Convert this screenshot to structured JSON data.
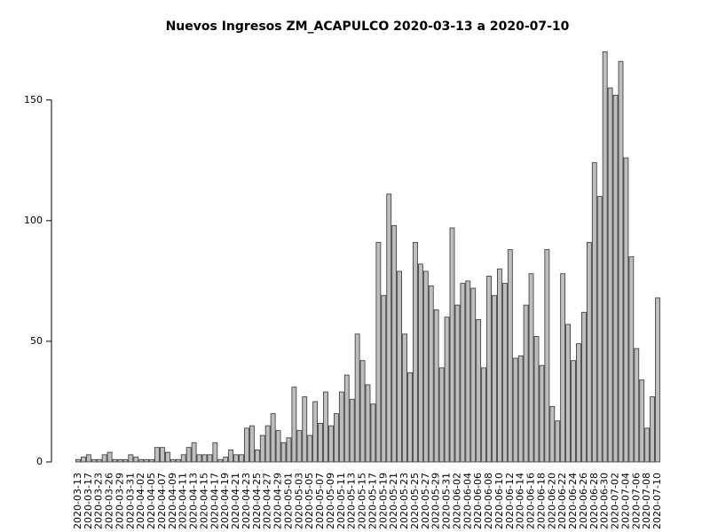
{
  "chart_data": {
    "type": "bar",
    "title": "Nuevos Ingresos ZM_ACAPULCO 2020-03-13 a 2020-07-10",
    "categories": [
      "2020-03-13",
      null,
      "2020-03-17",
      null,
      "2020-03-23",
      null,
      "2020-03-26",
      null,
      "2020-03-29",
      null,
      "2020-03-31",
      null,
      "2020-04-02",
      null,
      "2020-04-05",
      null,
      "2020-04-07",
      null,
      "2020-04-09",
      null,
      "2020-04-11",
      null,
      "2020-04-13",
      null,
      "2020-04-15",
      null,
      "2020-04-17",
      null,
      "2020-04-19",
      null,
      "2020-04-21",
      null,
      "2020-04-23",
      null,
      "2020-04-25",
      null,
      "2020-04-27",
      null,
      "2020-04-29",
      null,
      "2020-05-01",
      null,
      "2020-05-03",
      null,
      "2020-05-05",
      null,
      "2020-05-07",
      null,
      "2020-05-09",
      null,
      "2020-05-11",
      null,
      "2020-05-13",
      null,
      "2020-05-15",
      null,
      "2020-05-17",
      null,
      "2020-05-19",
      null,
      "2020-05-21",
      null,
      "2020-05-23",
      null,
      "2020-05-25",
      null,
      "2020-05-27",
      null,
      "2020-05-29",
      null,
      "2020-05-31",
      null,
      "2020-06-02",
      null,
      "2020-06-04",
      null,
      "2020-06-06",
      null,
      "2020-06-08",
      null,
      "2020-06-10",
      null,
      "2020-06-12",
      null,
      "2020-06-14",
      null,
      "2020-06-16",
      null,
      "2020-06-18",
      null,
      "2020-06-20",
      null,
      "2020-06-22",
      null,
      "2020-06-24",
      null,
      "2020-06-26",
      null,
      "2020-06-28",
      null,
      "2020-06-30",
      null,
      "2020-07-02",
      null,
      "2020-07-04",
      null,
      "2020-07-06",
      null,
      "2020-07-08",
      null,
      "2020-07-10"
    ],
    "values": [
      1,
      2,
      3,
      1,
      1,
      3,
      4,
      1,
      1,
      1,
      3,
      2,
      1,
      1,
      1,
      6,
      6,
      4,
      1,
      1,
      3,
      6,
      8,
      3,
      3,
      3,
      8,
      1,
      2,
      5,
      3,
      3,
      14,
      15,
      5,
      11,
      15,
      20,
      13,
      8,
      10,
      31,
      13,
      27,
      11,
      25,
      16,
      29,
      15,
      20,
      29,
      36,
      26,
      53,
      42,
      32,
      24,
      91,
      69,
      111,
      98,
      79,
      53,
      37,
      91,
      82,
      79,
      73,
      63,
      39,
      60,
      97,
      65,
      74,
      75,
      72,
      59,
      39,
      77,
      69,
      80,
      74,
      88,
      43,
      44,
      65,
      78,
      52,
      40,
      88,
      23,
      17,
      78,
      57,
      42,
      49,
      62,
      91,
      124,
      110,
      170,
      155,
      152,
      166,
      126,
      85,
      47,
      34,
      14,
      27,
      68
    ],
    "color": "#bebebe",
    "ylim": [
      0,
      176
    ],
    "yticks": [
      0,
      50,
      100,
      150
    ]
  }
}
